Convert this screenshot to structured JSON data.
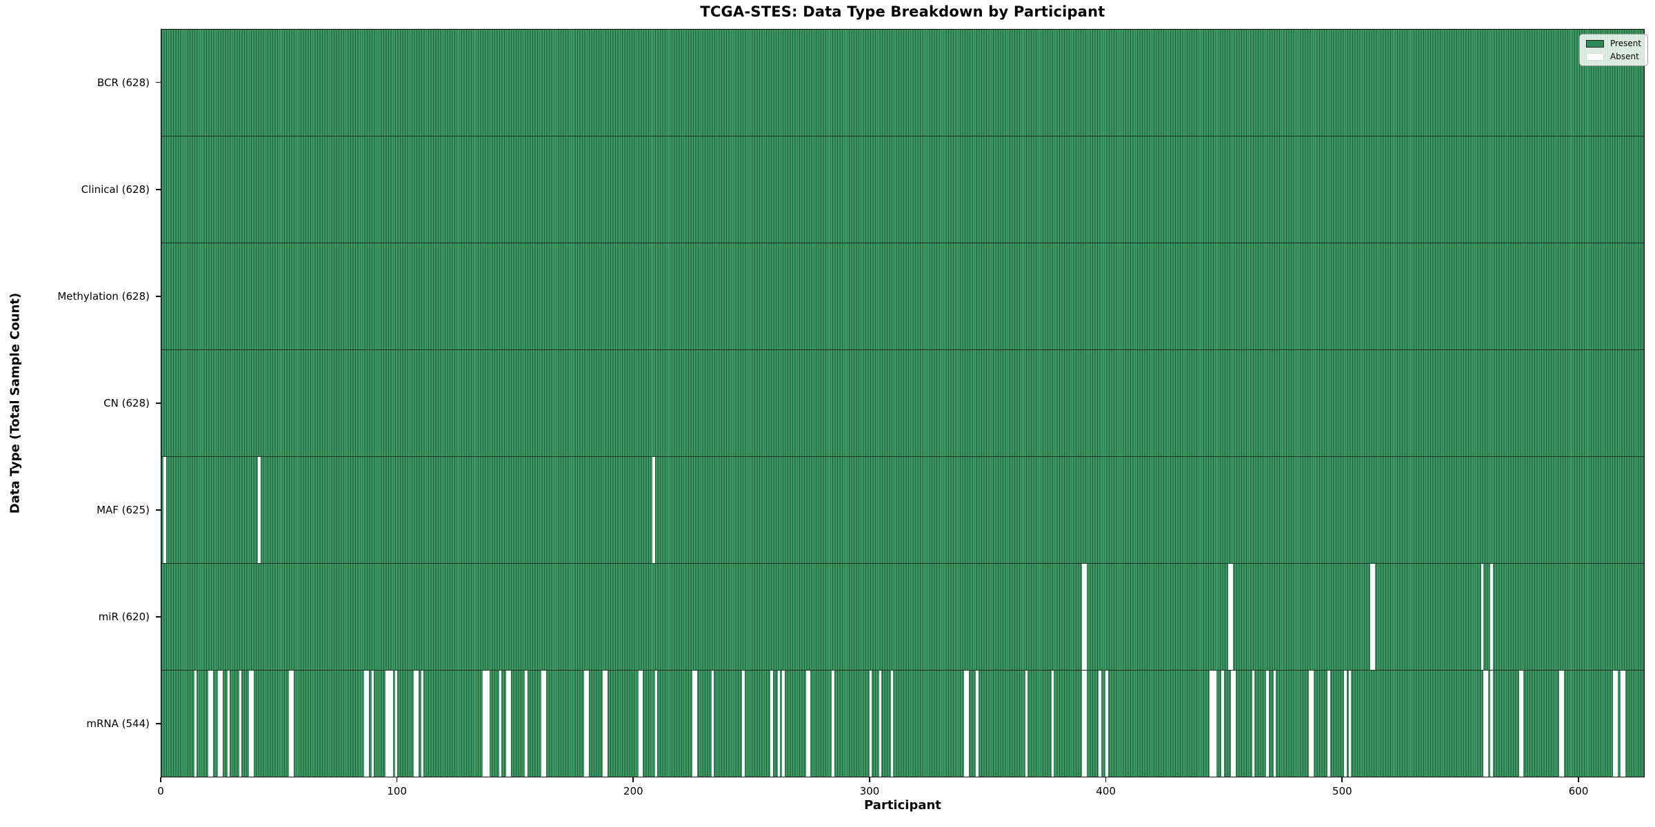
{
  "chart_data": {
    "type": "heatmap",
    "title": "TCGA-STES: Data Type Breakdown by Participant",
    "xlabel": "Participant",
    "ylabel": "Data Type (Total Sample Count)",
    "n_participants": 628,
    "x_ticks": [
      0,
      100,
      200,
      300,
      400,
      500,
      600
    ],
    "grid": false,
    "legend": {
      "position": "upper right",
      "entries": [
        {
          "label": "Present",
          "color": "#2e8b57",
          "edge": "#222222"
        },
        {
          "label": "Absent",
          "color": "#ffffff",
          "edge": "#d9d9d9"
        }
      ]
    },
    "colors": {
      "present_fill": "#3d9a63",
      "bar_edge": "#1e5a3a",
      "absent_fill": "#ffffff",
      "row_separator": "rgba(0,0,0,0.65)"
    },
    "rows": [
      {
        "key": "bcr",
        "data_type": "BCR",
        "label": "BCR (628)",
        "present_count": 628,
        "absent_participants": []
      },
      {
        "key": "clinical",
        "data_type": "Clinical",
        "label": "Clinical (628)",
        "present_count": 628,
        "absent_participants": []
      },
      {
        "key": "methylation",
        "data_type": "Methylation",
        "label": "Methylation (628)",
        "present_count": 628,
        "absent_participants": []
      },
      {
        "key": "cn",
        "data_type": "CN",
        "label": "CN (628)",
        "present_count": 628,
        "absent_participants": []
      },
      {
        "key": "maf",
        "data_type": "MAF",
        "label": "MAF (625)",
        "present_count": 625,
        "absent_participants": [
          1,
          41,
          208
        ]
      },
      {
        "key": "mir",
        "data_type": "miR",
        "label": "miR (620)",
        "present_count": 620,
        "absent_participants": [
          390,
          391,
          452,
          453,
          512,
          513,
          559,
          563
        ]
      },
      {
        "key": "mrna",
        "data_type": "mRNA",
        "label": "mRNA (544)",
        "present_count": 544,
        "absent_participants": [
          14,
          20,
          21,
          24,
          25,
          28,
          33,
          37,
          38,
          54,
          55,
          86,
          87,
          89,
          95,
          96,
          97,
          99,
          107,
          108,
          110,
          136,
          137,
          138,
          143,
          146,
          147,
          154,
          161,
          162,
          179,
          180,
          187,
          188,
          202,
          203,
          209,
          225,
          226,
          233,
          246,
          258,
          261,
          263,
          273,
          274,
          284,
          300,
          304,
          309,
          340,
          341,
          345,
          366,
          377,
          390,
          391,
          397,
          400,
          444,
          445,
          446,
          449,
          453,
          454,
          462,
          468,
          471,
          486,
          487,
          494,
          501,
          503,
          560,
          561,
          563,
          575,
          576,
          592,
          593,
          615,
          616,
          618,
          619
        ]
      }
    ]
  }
}
